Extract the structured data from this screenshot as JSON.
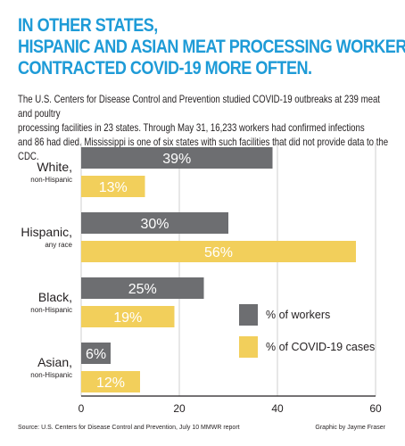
{
  "title_lines": [
    "IN OTHER STATES,",
    "HISPANIC AND ASIAN MEAT PROCESSING WORKERS",
    "CONTRACTED COVID-19 MORE OFTEN."
  ],
  "subtitle_lines": [
    "The U.S. Centers for Disease Control and Prevention studied COVID-19 outbreaks at 239 meat and poultry",
    "processing facilities in 23 states. Through May 31, 16,233 workers had confirmed infections",
    "and 86 had died.  Mississippi is one of six states with such facilities that did not provide data to the CDC."
  ],
  "source": "Source: U.S. Centers for Disease Control and Prevention, July 10 MMWR report",
  "credit": "Graphic by Jayme Fraser",
  "colors": {
    "title": "#1e9bd7",
    "workers": "#6d6e71",
    "cases": "#f2cf5b"
  },
  "chart_data": {
    "type": "bar",
    "orientation": "horizontal",
    "categories": [
      {
        "name": "White,",
        "sub": "non-Hispanic"
      },
      {
        "name": "Hispanic,",
        "sub": "any race"
      },
      {
        "name": "Black,",
        "sub": "non-Hispanic"
      },
      {
        "name": "Asian,",
        "sub": "non-Hispanic"
      }
    ],
    "series": [
      {
        "name": "% of workers",
        "values": [
          39,
          30,
          25,
          6
        ],
        "labels": [
          "39%",
          "30%",
          "25%",
          "6%"
        ]
      },
      {
        "name": "% of COVID-19 cases",
        "values": [
          13,
          56,
          19,
          12
        ],
        "labels": [
          "13%",
          "56%",
          "19%",
          "12%"
        ]
      }
    ],
    "xlim": [
      0,
      60
    ],
    "ticks": [
      0,
      20,
      40,
      60
    ],
    "grid": true,
    "legend_position": "right"
  }
}
